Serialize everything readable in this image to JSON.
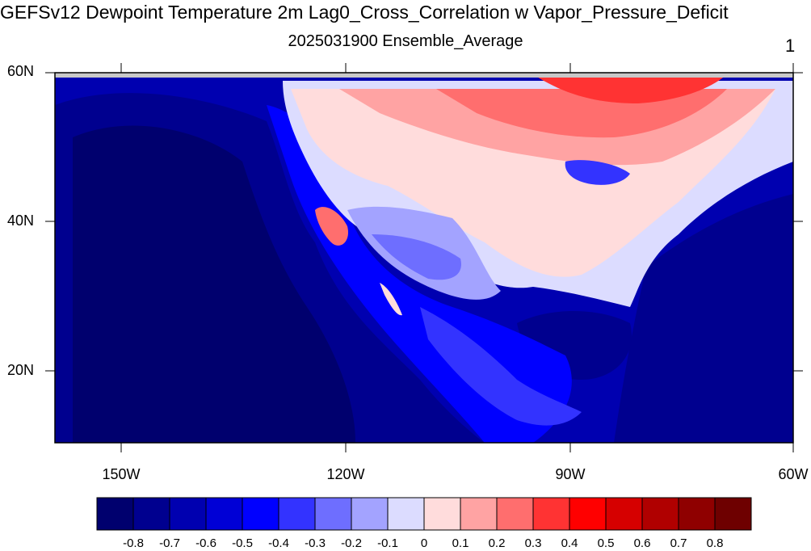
{
  "title": "GEFSv12 Dewpoint Temperature 2m Lag0_Cross_Correlation w Vapor_Pressure_Deficit",
  "subtitle": "2025031900 Ensemble_Average",
  "panel_number": "1",
  "lat_labels": [
    "60N",
    "40N",
    "20N"
  ],
  "lon_labels": [
    "150W",
    "120W",
    "90W",
    "60W"
  ],
  "colorbar": {
    "labels": [
      "-0.8",
      "-0.7",
      "-0.6",
      "-0.5",
      "-0.4",
      "-0.3",
      "-0.2",
      "-0.1",
      "0",
      "0.1",
      "0.2",
      "0.3",
      "0.4",
      "0.5",
      "0.6",
      "0.7",
      "0.8"
    ],
    "colors": [
      "#00006e",
      "#00008f",
      "#0000b0",
      "#0000d6",
      "#0000ff",
      "#3333ff",
      "#6e6eff",
      "#a3a3ff",
      "#dcdcff",
      "#ffdcdc",
      "#ffa3a3",
      "#ff6e6e",
      "#ff3333",
      "#ff0000",
      "#d60000",
      "#b00000",
      "#8f0000",
      "#6e0000"
    ]
  },
  "map_colors": {
    "ocean_deep": "#00006e",
    "ocean": "#0000b0",
    "coast": "#0000ff",
    "land_neutral": "#dcdcff",
    "land_warm": "#ffdcdc",
    "north_red": "#ff3333"
  }
}
